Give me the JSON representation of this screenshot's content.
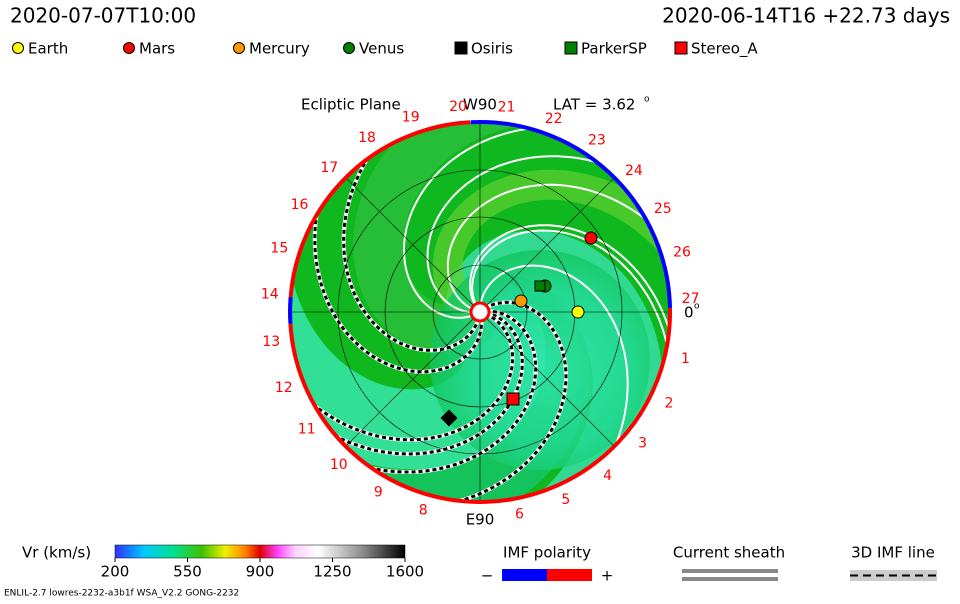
{
  "header": {
    "time": "2020-07-07T10:00",
    "reference": "2020-06-14T16 +22.73 days"
  },
  "legend": [
    {
      "name": "Earth",
      "color": "#ffff00",
      "shape": "circle"
    },
    {
      "name": "Mars",
      "color": "#ff0000",
      "shape": "circle"
    },
    {
      "name": "Mercury",
      "color": "#ff9900",
      "shape": "circle"
    },
    {
      "name": "Venus",
      "color": "#008000",
      "shape": "circle"
    },
    {
      "name": "Osiris",
      "color": "#000000",
      "shape": "square"
    },
    {
      "name": "ParkerSP",
      "color": "#008000",
      "shape": "square"
    },
    {
      "name": "Stereo_A",
      "color": "#ff0000",
      "shape": "square"
    }
  ],
  "plot": {
    "title": "Ecliptic Plane",
    "top_label": "W90",
    "bottom_label": "E90",
    "lat": "LAT = 3.62",
    "lat_unit": "o",
    "zero_label": "0",
    "zero_unit": "o",
    "sectors": [
      "1",
      "2",
      "3",
      "4",
      "5",
      "6",
      "8",
      "9",
      "10",
      "11",
      "12",
      "13",
      "14",
      "15",
      "16",
      "17",
      "18",
      "19",
      "20",
      "21",
      "22",
      "23",
      "24",
      "25",
      "26",
      "27"
    ]
  },
  "colorbar": {
    "label": "Vr (km/s)",
    "range": [
      200,
      1600
    ],
    "ticks": [
      200,
      550,
      900,
      1250,
      1600
    ]
  },
  "imf": {
    "title": "IMF polarity",
    "minus": "−",
    "plus": "+"
  },
  "sheath": {
    "title": "Current sheath"
  },
  "imf3d": {
    "title": "3D IMF line"
  },
  "footer": {
    "left": "ENLIL-2.7 lowres-2232-a3b1f WSA_V2.2 GONG-2232"
  }
}
